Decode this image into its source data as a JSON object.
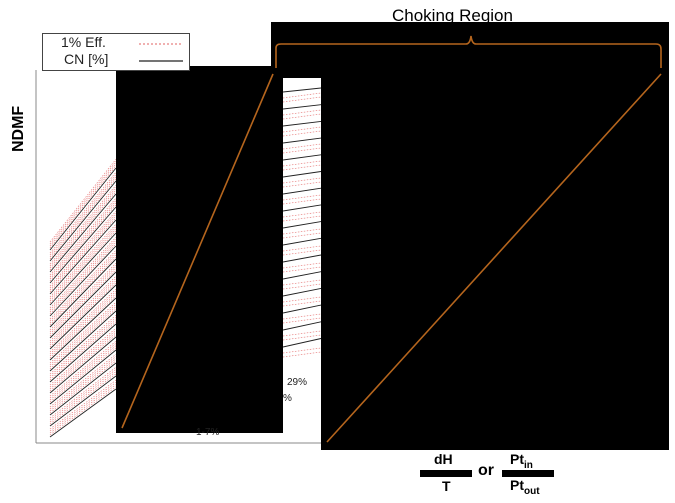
{
  "region_label": "Choking Region",
  "y_axis_label": "NDMF",
  "legend": {
    "items": [
      {
        "label": "1% Eff.",
        "style": "dotted",
        "color": "#e88080"
      },
      {
        "label": "CN [%]",
        "style": "solid",
        "color": "#222222"
      }
    ]
  },
  "percent_labels": [
    "29%",
    "%",
    "1-7%"
  ],
  "formula": {
    "frac1_num": "dH",
    "frac1_den": "T",
    "or": "or",
    "frac2_num": "Pt",
    "frac2_num_sub": "in",
    "frac2_den": "Pt",
    "frac2_den_sub": "out"
  },
  "colors": {
    "accent": "#b5651d",
    "efficiency": "#e88080",
    "speed_line": "#222222",
    "mask": "#000000"
  }
}
